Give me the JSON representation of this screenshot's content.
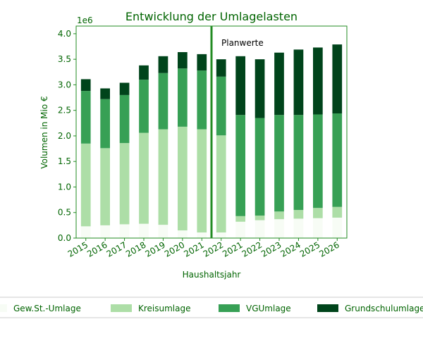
{
  "chart_data": {
    "type": "bar",
    "stacked": true,
    "title": "Entwicklung der Umlagelasten",
    "xlabel": "Haushaltsjahr",
    "ylabel": "Volumen in Mio €",
    "offset_label": "1e6",
    "ylim": [
      0,
      4150000
    ],
    "yticks": [
      0,
      500000,
      1000000,
      1500000,
      2000000,
      2500000,
      3000000,
      3500000,
      4000000
    ],
    "ytick_labels": [
      "0.0",
      "0.5",
      "1.0",
      "1.5",
      "2.0",
      "2.5",
      "3.0",
      "3.5",
      "4.0"
    ],
    "categories": [
      "2015",
      "2016",
      "2017",
      "2018",
      "2019",
      "2020",
      "2021",
      "2022",
      "2021",
      "2022",
      "2023",
      "2024",
      "2025",
      "2026"
    ],
    "divider_after_index": 6,
    "annotation": "Planwerte",
    "legend_position": "bottom",
    "series": [
      {
        "name": "Gew.St.-Umlage",
        "color": "#f7fcf5",
        "values": [
          230000,
          250000,
          270000,
          280000,
          260000,
          150000,
          110000,
          110000,
          320000,
          350000,
          370000,
          380000,
          390000,
          400000
        ]
      },
      {
        "name": "Kreisumlage",
        "color": "#addea7",
        "values": [
          1620000,
          1510000,
          1590000,
          1780000,
          1870000,
          2030000,
          2020000,
          1900000,
          110000,
          90000,
          150000,
          170000,
          200000,
          210000
        ]
      },
      {
        "name": "VGUmlage",
        "color": "#37a055",
        "values": [
          1030000,
          960000,
          940000,
          1040000,
          1100000,
          1140000,
          1150000,
          1150000,
          1980000,
          1910000,
          1890000,
          1860000,
          1830000,
          1830000
        ]
      },
      {
        "name": "Grundschulumlage",
        "color": "#00441b",
        "values": [
          230000,
          210000,
          240000,
          280000,
          330000,
          320000,
          320000,
          340000,
          1150000,
          1150000,
          1220000,
          1280000,
          1310000,
          1350000
        ]
      }
    ]
  }
}
